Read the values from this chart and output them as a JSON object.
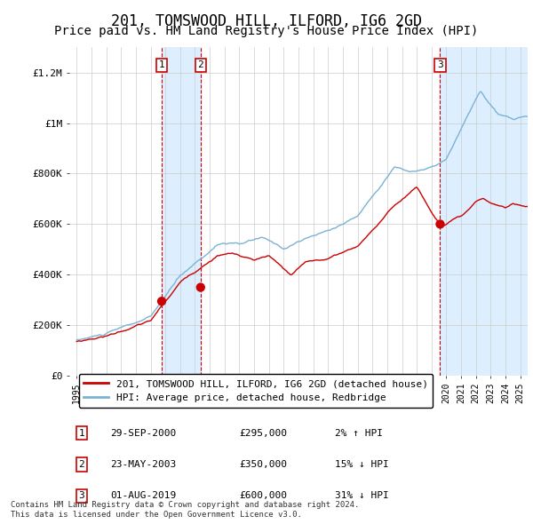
{
  "title": "201, TOMSWOOD HILL, ILFORD, IG6 2GD",
  "subtitle": "Price paid vs. HM Land Registry's House Price Index (HPI)",
  "hpi_legend": "HPI: Average price, detached house, Redbridge",
  "price_legend": "201, TOMSWOOD HILL, ILFORD, IG6 2GD (detached house)",
  "footnote1": "Contains HM Land Registry data © Crown copyright and database right 2024.",
  "footnote2": "This data is licensed under the Open Government Licence v3.0.",
  "transactions": [
    {
      "label": "1",
      "date": "29-SEP-2000",
      "price": 295000,
      "hpi_rel": "2% ↑ HPI",
      "year": 2000.75
    },
    {
      "label": "2",
      "date": "23-MAY-2003",
      "price": 350000,
      "hpi_rel": "15% ↓ HPI",
      "year": 2003.38
    },
    {
      "label": "3",
      "date": "01-AUG-2019",
      "price": 600000,
      "hpi_rel": "31% ↓ HPI",
      "year": 2019.58
    }
  ],
  "ylim": [
    0,
    1300000
  ],
  "yticks": [
    0,
    200000,
    400000,
    600000,
    800000,
    1000000,
    1200000
  ],
  "ytick_labels": [
    "£0",
    "£200K",
    "£400K",
    "£600K",
    "£800K",
    "£1M",
    "£1.2M"
  ],
  "xlim_start": 1994.5,
  "xlim_end": 2025.5,
  "hpi_color": "#7ab3d4",
  "price_color": "#cc0000",
  "dot_color": "#cc0000",
  "shade_color": "#ddeeff",
  "vline_color": "#cc0000",
  "grid_color": "#cccccc",
  "background_color": "#ffffff",
  "title_fontsize": 12,
  "subtitle_fontsize": 10,
  "hpi_seed": 10,
  "price_seed": 20
}
